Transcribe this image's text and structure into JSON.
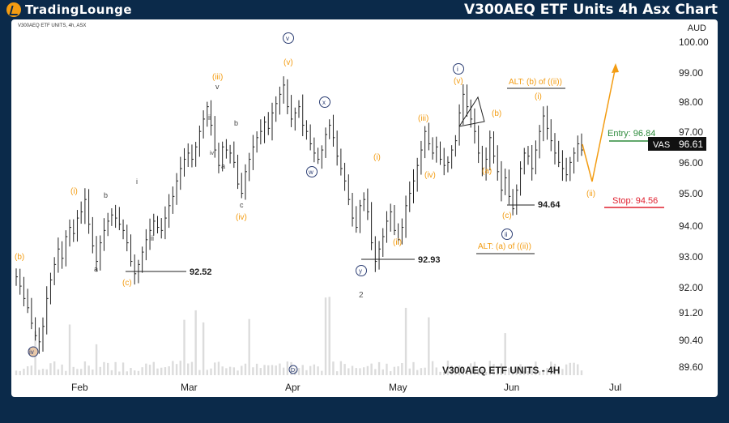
{
  "header": {
    "logo_text": "TradingLounge",
    "title": "V300AEQ ETF Units 4h Asx Chart"
  },
  "panel": {
    "subtitle": "V300AEQ ETF UNITS, 4h, ASX",
    "currency": "AUD",
    "watermark": "V300AEQ ETF UNITS - 4H"
  },
  "colors": {
    "background": "#0b2a4a",
    "orange": "#f39c12",
    "navy": "#2c3e73",
    "green": "#2e8b3c",
    "red": "#e0202f",
    "candles": "#222222",
    "volume": "#dcdcdc"
  },
  "chart_data": {
    "type": "candlestick",
    "x_ticks": [
      "Feb",
      "Mar",
      "Apr",
      "May",
      "Jun",
      "Jul"
    ],
    "y_ticks": [
      "100.00",
      "99.00",
      "98.00",
      "97.00",
      "96.00",
      "95.00",
      "94.00",
      "93.00",
      "92.00",
      "91.20",
      "90.40",
      "89.60"
    ],
    "ylim": [
      89.4,
      100.4
    ],
    "current_price": {
      "label": "VAS",
      "value": "96.61"
    },
    "levels": [
      {
        "name": "entry",
        "label": "Entry: 96.84",
        "value": 96.84
      },
      {
        "name": "stop",
        "label": "Stop: 94.56",
        "value": 94.56
      }
    ],
    "price_marks": [
      {
        "label": "92.52",
        "value": 92.52
      },
      {
        "label": "92.93",
        "value": 92.93
      },
      {
        "label": "94.64",
        "value": 94.64
      }
    ],
    "wave_labels_orange": [
      "(b)",
      "(c)",
      "(i)",
      "(ii)",
      "(iii)",
      "(iv)",
      "(v)",
      "(i)",
      "(ii)",
      "(iii)",
      "(iv)",
      "(v)",
      "(a)",
      "(b)",
      "(c)",
      "(i)",
      "(ii)"
    ],
    "wave_labels_navy": [
      "iv",
      "v",
      "w",
      "x",
      "y",
      "i",
      "ii"
    ],
    "wave_labels_grey": [
      "a",
      "b",
      "i",
      "ii",
      "iii",
      "iv",
      "v",
      "a",
      "b",
      "c",
      "2",
      "D"
    ],
    "alt_labels": [
      "ALT: (b) of ((ii))",
      "ALT: (a) of ((ii))"
    ],
    "price_series": [
      92.5,
      92.2,
      91.8,
      91.5,
      91.0,
      90.6,
      90.4,
      90.9,
      91.8,
      92.4,
      92.9,
      93.4,
      93.1,
      93.8,
      94.1,
      93.9,
      94.4,
      94.6,
      95.0,
      94.2,
      93.5,
      93.0,
      93.6,
      94.0,
      94.3,
      94.5,
      94.4,
      94.2,
      94.0,
      93.6,
      93.0,
      92.6,
      92.9,
      93.3,
      93.7,
      94.0,
      94.3,
      94.1,
      94.0,
      94.4,
      94.8,
      95.1,
      95.6,
      96.0,
      96.3,
      96.5,
      96.3,
      96.7,
      97.2,
      97.6,
      98.0,
      97.4,
      96.6,
      96.1,
      96.7,
      96.6,
      96.5,
      96.2,
      95.5,
      95.2,
      95.9,
      96.3,
      96.7,
      97.0,
      97.2,
      97.5,
      97.3,
      97.8,
      98.1,
      98.4,
      98.7,
      98.0,
      97.6,
      97.8,
      98.0,
      97.4,
      97.2,
      96.8,
      96.5,
      96.3,
      96.6,
      97.1,
      97.4,
      97.0,
      96.4,
      96.0,
      95.6,
      95.0,
      94.4,
      94.1,
      94.8,
      95.0,
      94.6,
      93.6,
      93.0,
      93.4,
      93.8,
      94.3,
      94.6,
      94.0,
      93.7,
      94.1,
      94.8,
      95.2,
      95.6,
      96.1,
      96.6,
      97.2,
      96.8,
      96.5,
      96.7,
      96.3,
      96.1,
      96.2,
      96.6,
      96.9,
      97.8,
      98.4,
      98.0,
      97.6,
      97.2,
      96.5,
      96.0,
      96.3,
      97.0,
      96.4,
      95.9,
      95.3,
      95.7,
      95.1,
      94.7,
      95.3,
      96.0,
      96.5,
      96.4,
      96.0,
      96.6,
      97.2,
      97.7,
      97.3,
      96.9,
      96.5,
      96.2,
      96.0,
      95.8,
      96.2,
      96.5,
      96.8,
      96.6
    ]
  }
}
